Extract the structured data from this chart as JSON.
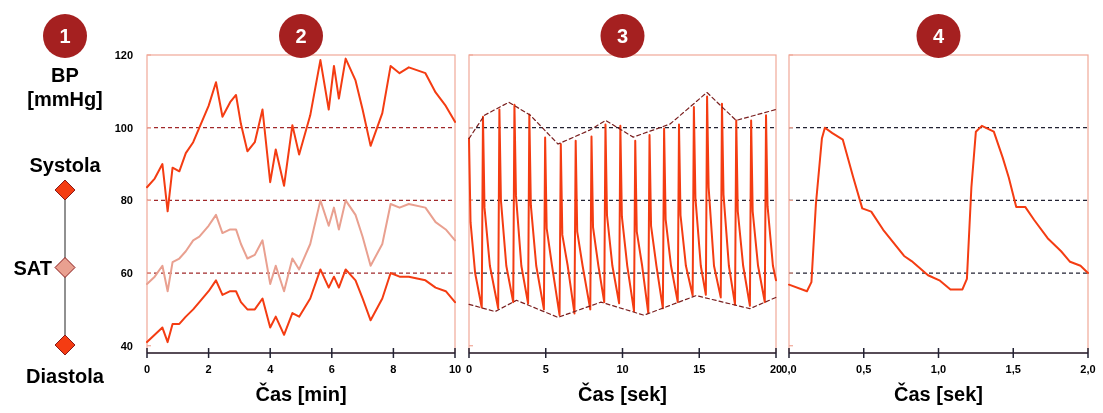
{
  "chart_data": [
    {
      "type": "line",
      "title": "2",
      "ylabel": "BP [mmHg]",
      "xlabel": "Čas [min]",
      "annotations": [
        "1"
      ],
      "legend": "left",
      "xlim": [
        0,
        10
      ],
      "xticks": [
        0,
        2,
        4,
        6,
        8,
        10
      ],
      "ylim": [
        38,
        120
      ],
      "yticks": [
        40,
        60,
        80,
        100,
        120
      ],
      "x": [
        0,
        0.25,
        0.5,
        0.67,
        0.83,
        1.05,
        1.26,
        1.5,
        1.7,
        2.0,
        2.24,
        2.45,
        2.7,
        2.89,
        3.05,
        3.26,
        3.5,
        3.75,
        4.0,
        4.18,
        4.45,
        4.72,
        4.94,
        5.3,
        5.63,
        5.9,
        6.07,
        6.23,
        6.45,
        6.77,
        7.0,
        7.26,
        7.64,
        7.91,
        8.2,
        8.5,
        9.04,
        9.37,
        9.7,
        10
      ],
      "series": [
        {
          "name": "Systola",
          "color": "#f43c12",
          "values": [
            83.6,
            86,
            90,
            77,
            89,
            88,
            93,
            96,
            100,
            106,
            112.5,
            103,
            107,
            109,
            101,
            93.5,
            96,
            105,
            85,
            94,
            84,
            100.7,
            92.6,
            103.4,
            118.6,
            105,
            117,
            108,
            119,
            113,
            105,
            95,
            104,
            117,
            115,
            116.6,
            115,
            109.7,
            106,
            101.6
          ]
        },
        {
          "name": "SAT",
          "color": "#e9a090",
          "values": [
            57,
            59,
            62,
            55,
            63,
            64,
            66,
            69,
            70,
            73,
            76,
            71,
            72,
            72,
            68,
            64,
            65,
            69,
            57,
            62,
            55,
            64,
            61,
            68,
            80,
            73,
            78,
            72,
            80,
            76,
            70,
            62,
            68,
            79,
            78,
            79,
            78,
            74,
            72,
            69
          ]
        },
        {
          "name": "Diastola",
          "color": "#f43c12",
          "values": [
            41,
            43,
            45,
            41,
            46,
            46,
            48,
            50,
            52,
            55,
            58,
            54,
            55,
            55,
            52,
            50,
            50,
            53,
            45,
            48,
            43,
            49,
            48,
            53,
            61,
            56,
            59,
            56,
            61,
            58,
            53,
            47,
            53,
            60,
            59,
            59,
            58,
            56,
            55,
            52
          ]
        }
      ],
      "ref_lines": [
        {
          "axis": "y",
          "value": 100,
          "color": "#a0282a",
          "line_style": "dashed"
        },
        {
          "axis": "y",
          "value": 80,
          "color": "#a0282a",
          "line_style": "dashed"
        },
        {
          "axis": "y",
          "value": 60,
          "color": "#a0282a",
          "line_style": "dashed"
        }
      ]
    },
    {
      "type": "line",
      "title": "3",
      "xlabel": "Čas [sek]",
      "tick_labels": "x",
      "xlim": [
        0,
        20
      ],
      "xticks": [
        0,
        5,
        10,
        15,
        20
      ],
      "ylim": [
        38,
        120
      ],
      "yticks": [
        40,
        60,
        80,
        100,
        120
      ],
      "series": [
        {
          "color": "#f43c12",
          "x": [
            0,
            0.1,
            0.4,
            0.83,
            0.91,
            1.01,
            1.36,
            1.9,
            1.98,
            2.08,
            2.43,
            2.88,
            2.96,
            3.06,
            3.41,
            3.85,
            3.93,
            4.03,
            4.38,
            4.88,
            4.96,
            5.06,
            5.41,
            5.9,
            5.98,
            6.08,
            6.43,
            6.87,
            6.95,
            7.05,
            7.4,
            7.9,
            7.98,
            8.08,
            8.43,
            8.81,
            8.89,
            8.99,
            9.34,
            9.78,
            9.86,
            9.96,
            10.31,
            10.75,
            10.83,
            10.93,
            11.28,
            11.68,
            11.76,
            11.86,
            12.21,
            12.63,
            12.71,
            12.81,
            13.16,
            13.6,
            13.68,
            13.78,
            14.13,
            14.57,
            14.65,
            14.75,
            15.1,
            15.43,
            15.51,
            15.61,
            15.96,
            16.4,
            16.48,
            16.58,
            16.93,
            17.33,
            17.41,
            17.51,
            17.86,
            18.3,
            18.38,
            18.48,
            18.83,
            19.27,
            19.35,
            19.45,
            19.8,
            20
          ],
          "values": [
            97,
            74,
            60,
            50.5,
            103,
            78,
            62,
            50.3,
            105,
            80,
            62,
            52,
            106.3,
            81.3,
            62,
            51.6,
            103.6,
            78.6,
            62,
            50,
            97.3,
            72.3,
            62,
            48.4,
            95.5,
            70.5,
            62,
            48.9,
            96.4,
            71.4,
            62,
            50,
            97.6,
            72.6,
            62,
            52,
            100.9,
            75.9,
            62,
            51.7,
            100.5,
            75.5,
            62,
            49.5,
            96.4,
            71.4,
            62,
            49,
            98,
            73,
            62,
            50.3,
            99.8,
            74.8,
            62,
            52,
            100.9,
            75.9,
            62,
            53.8,
            105.7,
            80.7,
            62,
            54,
            108.6,
            83.6,
            62,
            53.3,
            106.6,
            81.6,
            62,
            51.3,
            102,
            77,
            62,
            51,
            102,
            77,
            62,
            52,
            103.4,
            78.4,
            62,
            58
          ]
        },
        {
          "color": "#7a1f1f",
          "line_style": "dashed",
          "x": [
            0,
            1,
            2.6,
            4,
            5.8,
            7.9,
            8.9,
            10.7,
            13.1,
            15.5,
            17.4,
            20
          ],
          "values": [
            97,
            103.4,
            107,
            103.4,
            95.5,
            99.4,
            102,
            97.4,
            101,
            109.7,
            102,
            105
          ]
        },
        {
          "color": "#7a1f1f",
          "line_style": "dashed",
          "x": [
            0,
            1.7,
            3.1,
            5.8,
            8.6,
            11.4,
            14.8,
            18.3,
            20
          ],
          "values": [
            51.4,
            49.4,
            52.5,
            47.8,
            52,
            48.4,
            53.8,
            50.2,
            53.3
          ]
        }
      ],
      "ref_lines": [
        {
          "axis": "y",
          "value": 100,
          "color": "#222233",
          "line_style": "dashed"
        },
        {
          "axis": "y",
          "value": 80,
          "color": "#222233",
          "line_style": "dashed"
        },
        {
          "axis": "y",
          "value": 60,
          "color": "#222233",
          "line_style": "dashed"
        }
      ]
    },
    {
      "type": "line",
      "title": "4",
      "xlabel": "Čas [sek]",
      "tick_labels": "x",
      "xlim": [
        0,
        2
      ],
      "xticks": [
        {
          "value": 0,
          "label": "0,0"
        },
        {
          "value": 0.5,
          "label": "0,5"
        },
        {
          "value": 1,
          "label": "1,0"
        },
        {
          "value": 1.5,
          "label": "1,5"
        },
        {
          "value": 2,
          "label": "2,0"
        }
      ],
      "ylim": [
        38,
        120
      ],
      "yticks": [
        40,
        60,
        80,
        100,
        120
      ],
      "x": [
        0,
        0.12,
        0.15,
        0.18,
        0.22,
        0.24,
        0.29,
        0.36,
        0.43,
        0.49,
        0.55,
        0.63,
        0.77,
        0.82,
        0.93,
        1.01,
        1.08,
        1.16,
        1.19,
        1.22,
        1.25,
        1.29,
        1.37,
        1.43,
        1.47,
        1.52,
        1.58,
        1.64,
        1.73,
        1.82,
        1.88,
        1.95,
        2.0
      ],
      "series": [
        {
          "color": "#f43c12",
          "values": [
            56.8,
            55,
            57.5,
            79,
            97,
            100,
            98.5,
            96.7,
            86.3,
            77.8,
            76.9,
            71.9,
            64.7,
            63.3,
            59.4,
            57.9,
            55.5,
            55.5,
            58.4,
            83.6,
            98.9,
            100.5,
            98.9,
            91.7,
            86.3,
            78.2,
            78.2,
            74.6,
            69.6,
            66,
            63.1,
            62,
            60
          ]
        }
      ],
      "ref_lines": [
        {
          "axis": "y",
          "value": 100,
          "color": "#222233",
          "line_style": "dashed"
        },
        {
          "axis": "y",
          "value": 80,
          "color": "#222233",
          "line_style": "dashed"
        },
        {
          "axis": "y",
          "value": 60,
          "color": "#222233",
          "line_style": "dashed"
        }
      ]
    }
  ]
}
